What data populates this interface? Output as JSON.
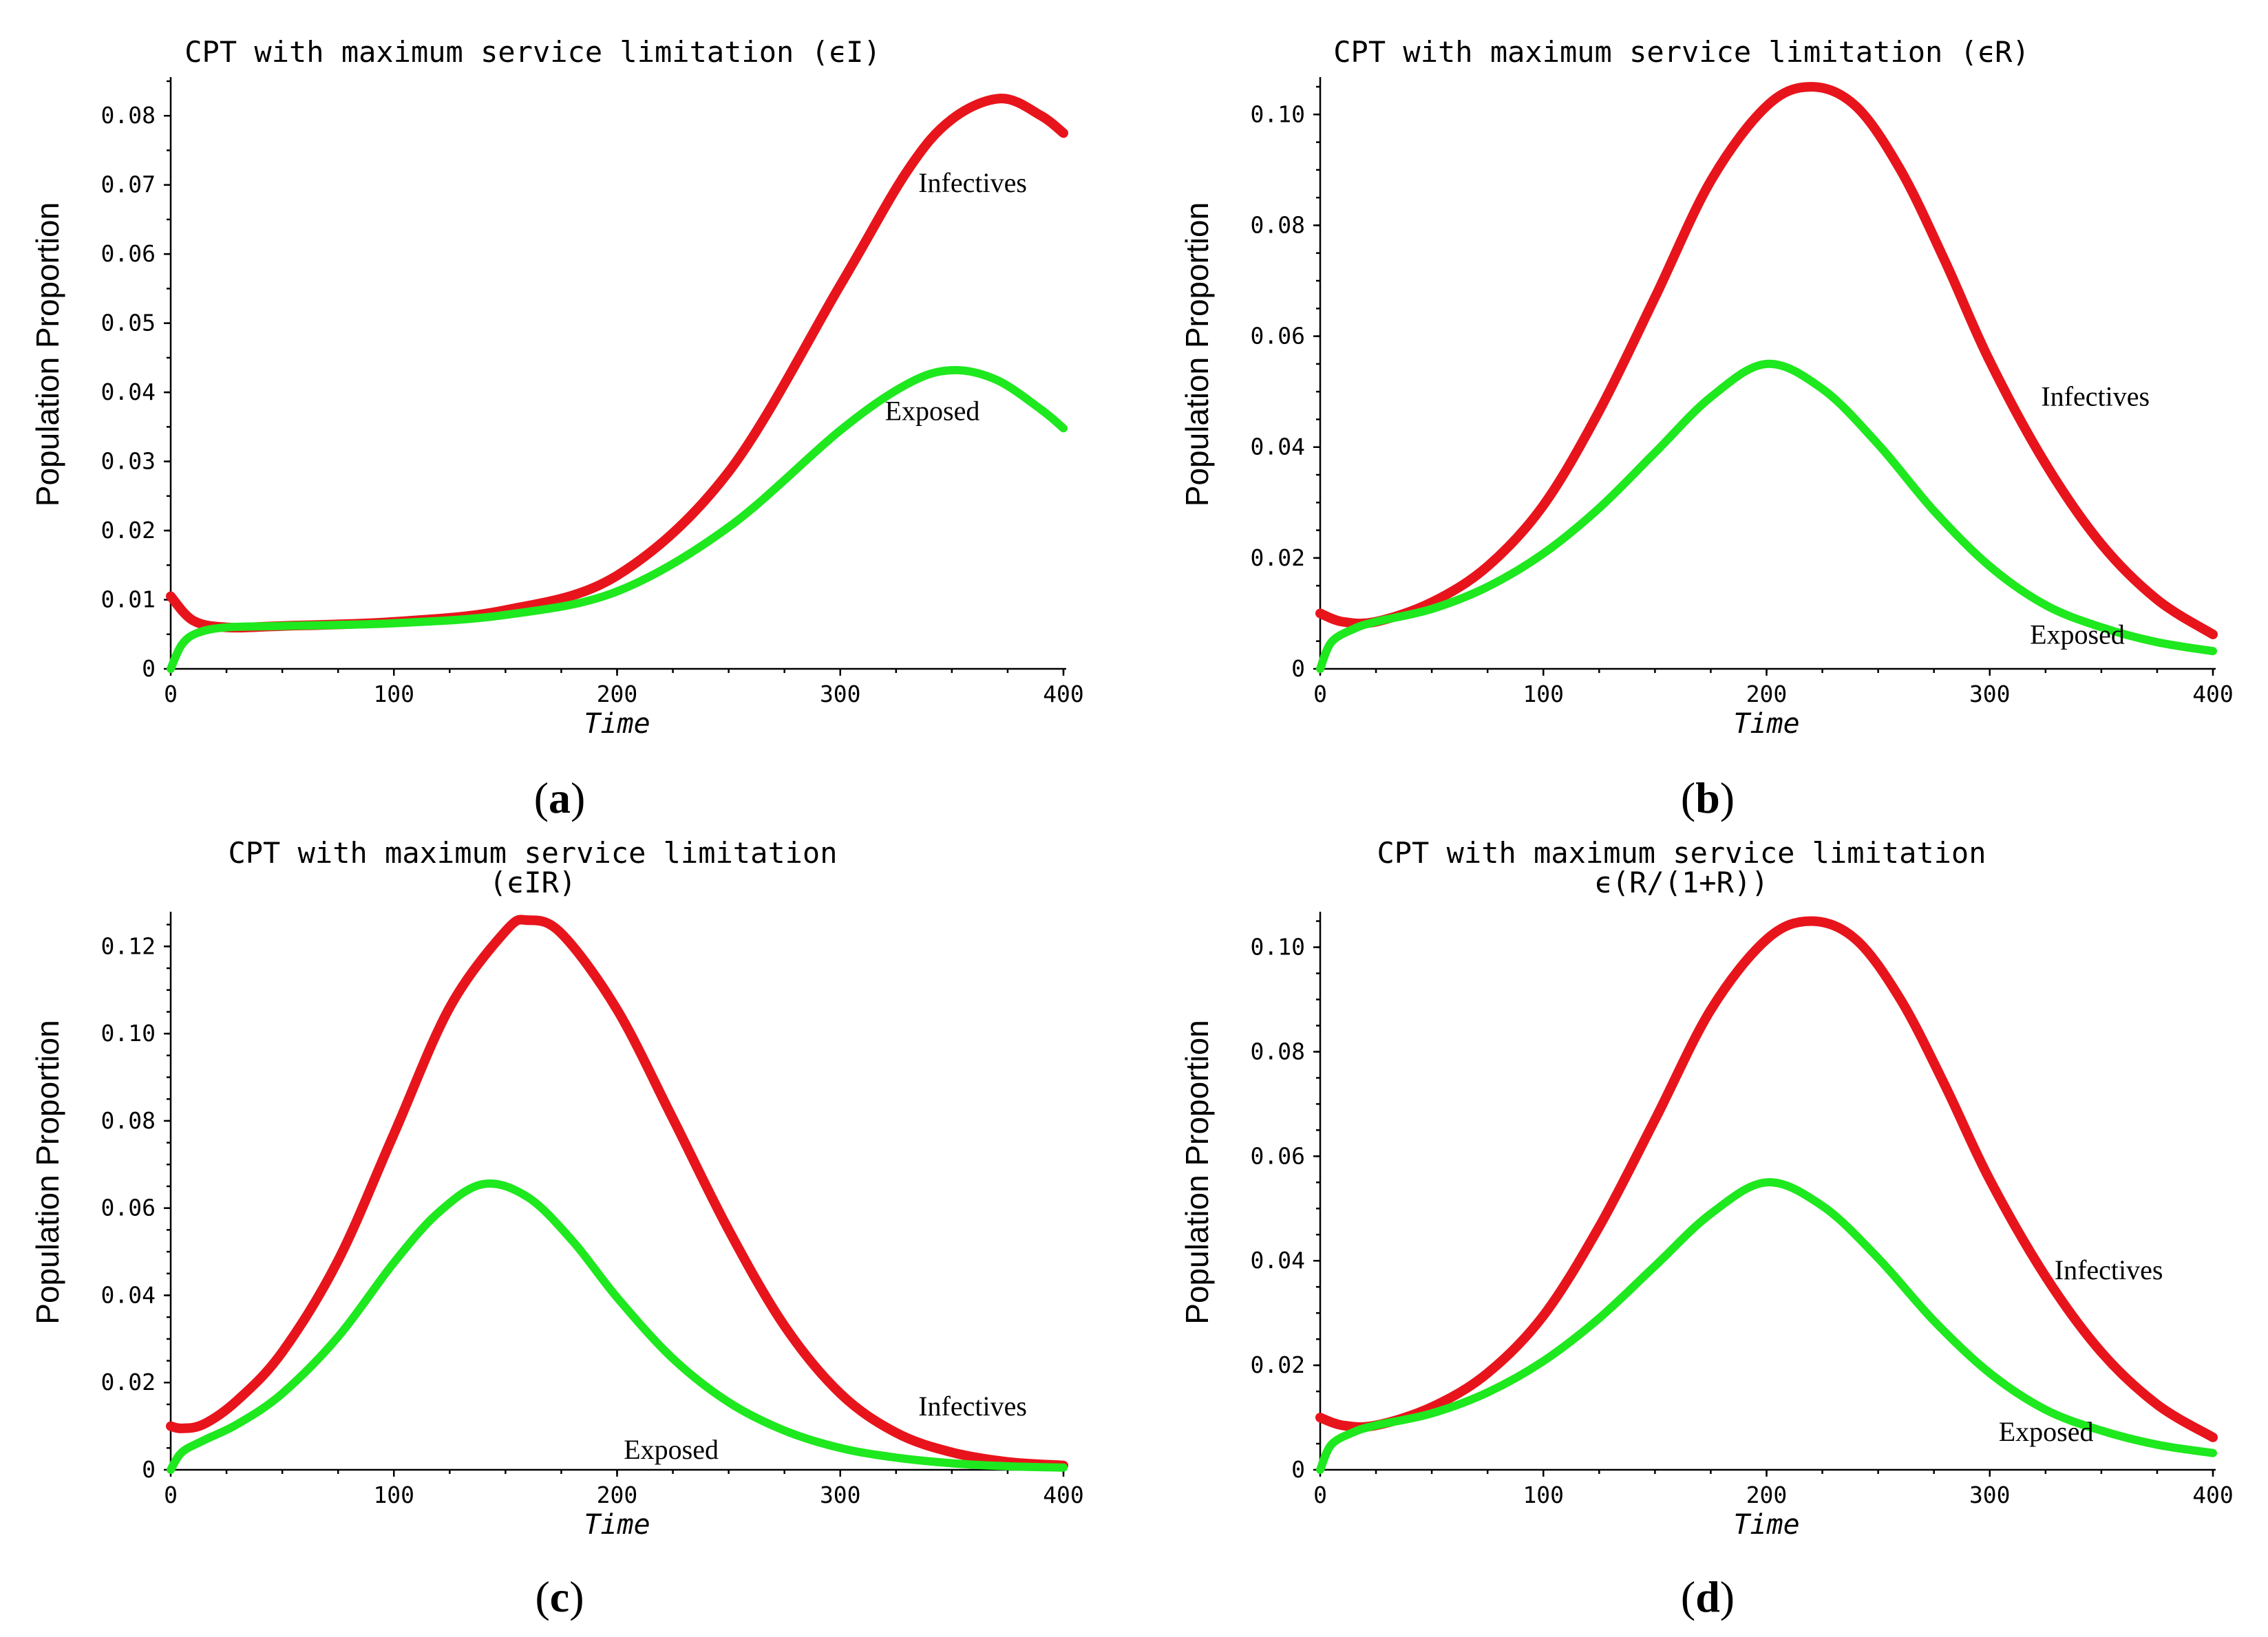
{
  "colors": {
    "infectives": "#e8141c",
    "exposed": "#1ee81e"
  },
  "chart_data": [
    {
      "id": "a",
      "type": "line",
      "panel_label": "a",
      "title_lines": [
        "CPT with maximum service limitation (ϵI)"
      ],
      "xlabel": "Time",
      "ylabel": "Population Proportion",
      "xlim": [
        0,
        400
      ],
      "ylim": [
        0,
        0.085
      ],
      "xticks": [
        0,
        100,
        200,
        300,
        400
      ],
      "yticks": [
        0,
        0.01,
        0.02,
        0.03,
        0.04,
        0.05,
        0.06,
        0.07,
        0.08
      ],
      "ytick_labels": [
        "0",
        "0.01",
        "0.02",
        "0.03",
        "0.04",
        "0.05",
        "0.06",
        "0.07",
        "0.08"
      ],
      "xtick_labels": [
        "0",
        "100",
        "200",
        "300",
        "400"
      ],
      "series": [
        {
          "name": "Infectives",
          "label": "Infectives",
          "label_at": [
            335,
            0.069
          ],
          "x": [
            0,
            10,
            25,
            50,
            100,
            150,
            200,
            250,
            300,
            330,
            350,
            372,
            390,
            400
          ],
          "y": [
            0.0105,
            0.007,
            0.006,
            0.0062,
            0.0068,
            0.0085,
            0.0135,
            0.0285,
            0.0555,
            0.072,
            0.0795,
            0.0825,
            0.08,
            0.0775
          ]
        },
        {
          "name": "Exposed",
          "label": "Exposed",
          "label_at": [
            320,
            0.036
          ],
          "x": [
            0,
            5,
            12,
            25,
            50,
            100,
            150,
            200,
            250,
            300,
            330,
            350,
            370,
            390,
            400
          ],
          "y": [
            0.0,
            0.0035,
            0.0052,
            0.006,
            0.0062,
            0.0066,
            0.0078,
            0.0112,
            0.0205,
            0.0345,
            0.0412,
            0.0432,
            0.0418,
            0.0375,
            0.0348
          ]
        }
      ]
    },
    {
      "id": "b",
      "type": "line",
      "panel_label": "b",
      "title_lines": [
        "CPT with maximum service limitation (ϵR)"
      ],
      "xlabel": "Time",
      "ylabel": "Population Proportion",
      "xlim": [
        0,
        400
      ],
      "ylim": [
        0,
        0.106
      ],
      "xticks": [
        0,
        100,
        200,
        300,
        400
      ],
      "yticks": [
        0,
        0.02,
        0.04,
        0.06,
        0.08,
        0.1
      ],
      "ytick_labels": [
        "0",
        "0.02",
        "0.04",
        "0.06",
        "0.08",
        "0.10"
      ],
      "xtick_labels": [
        "0",
        "100",
        "200",
        "300",
        "400"
      ],
      "series": [
        {
          "name": "Infectives",
          "label": "Infectives",
          "label_at": [
            323,
            0.0475
          ],
          "x": [
            0,
            10,
            25,
            50,
            75,
            100,
            125,
            150,
            175,
            200,
            220,
            240,
            260,
            280,
            300,
            325,
            350,
            375,
            400
          ],
          "y": [
            0.01,
            0.0085,
            0.0085,
            0.012,
            0.0185,
            0.0295,
            0.0465,
            0.067,
            0.088,
            0.1015,
            0.105,
            0.1015,
            0.09,
            0.0735,
            0.0555,
            0.037,
            0.0225,
            0.0125,
            0.0062
          ]
        },
        {
          "name": "Exposed",
          "label": "Exposed",
          "label_at": [
            318,
            0.0045
          ],
          "x": [
            0,
            5,
            15,
            25,
            50,
            75,
            100,
            125,
            150,
            175,
            200,
            225,
            250,
            275,
            300,
            325,
            350,
            375,
            400
          ],
          "y": [
            0.0,
            0.0048,
            0.0072,
            0.0085,
            0.0108,
            0.0148,
            0.0208,
            0.029,
            0.039,
            0.049,
            0.055,
            0.0505,
            0.0405,
            0.0285,
            0.0185,
            0.0115,
            0.0075,
            0.0048,
            0.0032
          ]
        }
      ]
    },
    {
      "id": "c",
      "type": "line",
      "panel_label": "c",
      "title_lines": [
        "CPT with maximum service limitation",
        "(ϵIR)"
      ],
      "xlabel": "Time",
      "ylabel": "Population Proportion",
      "xlim": [
        0,
        400
      ],
      "ylim": [
        0,
        0.127
      ],
      "xticks": [
        0,
        100,
        200,
        300,
        400
      ],
      "yticks": [
        0,
        0.02,
        0.04,
        0.06,
        0.08,
        0.1,
        0.12
      ],
      "ytick_labels": [
        "0",
        "0.02",
        "0.04",
        "0.06",
        "0.08",
        "0.10",
        "0.12"
      ],
      "xtick_labels": [
        "0",
        "100",
        "200",
        "300",
        "400"
      ],
      "series": [
        {
          "name": "Infectives",
          "label": "Infectives",
          "label_at": [
            335,
            0.0125
          ],
          "x": [
            0,
            5,
            15,
            30,
            50,
            75,
            100,
            125,
            150,
            160,
            175,
            200,
            225,
            250,
            275,
            300,
            325,
            350,
            375,
            400
          ],
          "y": [
            0.01,
            0.0095,
            0.0105,
            0.016,
            0.027,
            0.048,
            0.077,
            0.106,
            0.1235,
            0.126,
            0.123,
            0.1055,
            0.0805,
            0.055,
            0.033,
            0.0175,
            0.0085,
            0.004,
            0.0018,
            0.001
          ]
        },
        {
          "name": "Exposed",
          "label": "Exposed",
          "label_at": [
            203,
            0.0025
          ],
          "x": [
            0,
            5,
            15,
            30,
            50,
            75,
            100,
            120,
            140,
            160,
            180,
            200,
            225,
            250,
            275,
            300,
            325,
            350,
            375,
            400
          ],
          "y": [
            0.0,
            0.004,
            0.0068,
            0.0105,
            0.0175,
            0.0305,
            0.0475,
            0.059,
            0.0655,
            0.0625,
            0.0525,
            0.0395,
            0.0255,
            0.0155,
            0.009,
            0.005,
            0.0028,
            0.0015,
            0.0008,
            0.0005
          ]
        }
      ]
    },
    {
      "id": "d",
      "type": "line",
      "panel_label": "d",
      "title_lines": [
        "CPT with maximum service limitation",
        "ϵ(R/(1+R))"
      ],
      "xlabel": "Time",
      "ylabel": "Population Proportion",
      "xlim": [
        0,
        400
      ],
      "ylim": [
        0,
        0.106
      ],
      "xticks": [
        0,
        100,
        200,
        300,
        400
      ],
      "yticks": [
        0,
        0.02,
        0.04,
        0.06,
        0.08,
        0.1
      ],
      "ytick_labels": [
        "0",
        "0.02",
        "0.04",
        "0.06",
        "0.08",
        "0.10"
      ],
      "xtick_labels": [
        "0",
        "100",
        "200",
        "300",
        "400"
      ],
      "series": [
        {
          "name": "Infectives",
          "label": "Infectives",
          "label_at": [
            329,
            0.0365
          ],
          "x": [
            0,
            10,
            25,
            50,
            75,
            100,
            125,
            150,
            175,
            200,
            220,
            240,
            260,
            280,
            300,
            325,
            350,
            375,
            400
          ],
          "y": [
            0.01,
            0.0085,
            0.0085,
            0.012,
            0.0185,
            0.0295,
            0.0465,
            0.067,
            0.088,
            0.1015,
            0.105,
            0.1015,
            0.09,
            0.0735,
            0.0555,
            0.037,
            0.0225,
            0.0125,
            0.0062
          ]
        },
        {
          "name": "Exposed",
          "label": "Exposed",
          "label_at": [
            304,
            0.0055
          ],
          "x": [
            0,
            5,
            15,
            25,
            50,
            75,
            100,
            125,
            150,
            175,
            200,
            225,
            250,
            275,
            300,
            325,
            350,
            375,
            400
          ],
          "y": [
            0.0,
            0.0048,
            0.0072,
            0.0085,
            0.0108,
            0.0148,
            0.0208,
            0.029,
            0.039,
            0.049,
            0.055,
            0.0505,
            0.0405,
            0.0285,
            0.0185,
            0.0115,
            0.0075,
            0.0048,
            0.0032
          ]
        }
      ]
    }
  ]
}
